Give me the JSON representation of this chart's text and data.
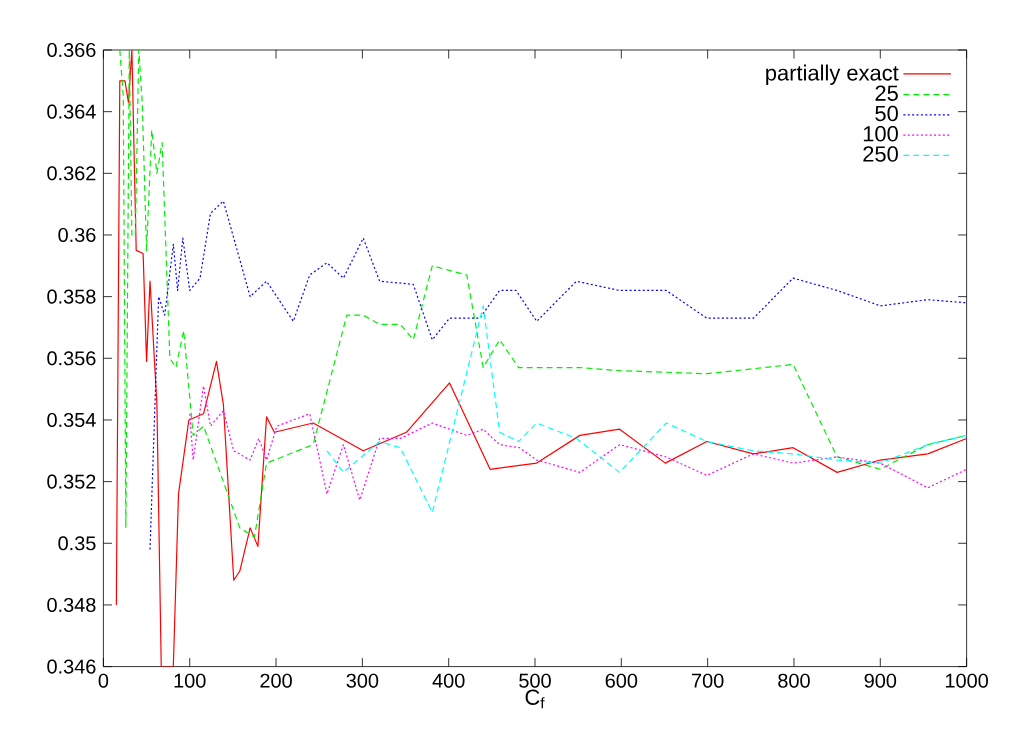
{
  "chart_data": {
    "type": "line",
    "xlabel": "C$_{f}$",
    "xlim": [
      0,
      1000
    ],
    "ylim": [
      0.346,
      0.366
    ],
    "xticks": [
      0,
      100,
      200,
      300,
      400,
      500,
      600,
      700,
      800,
      900,
      1000
    ],
    "yticks": [
      0.346,
      0.348,
      0.35,
      0.352,
      0.354,
      0.356,
      0.358,
      0.36,
      0.362,
      0.364,
      0.366
    ],
    "legend": "top right",
    "grid": false,
    "marker": "none",
    "series": [
      {
        "name": "partially exact",
        "color": "#ff0000",
        "line_style": "solid",
        "x": [
          15,
          19,
          25,
          29,
          33,
          38,
          46,
          50,
          54,
          62,
          67,
          81,
          87,
          99,
          116,
          131,
          139,
          151,
          158,
          170,
          179,
          189,
          198,
          243,
          301,
          351,
          401,
          448,
          502,
          552,
          598,
          651,
          699,
          753,
          799,
          850,
          900,
          955,
          1000
        ],
        "values": [
          0.348,
          0.365,
          0.365,
          0.3643,
          0.366,
          0.3595,
          0.3594,
          0.3559,
          0.3585,
          0.3545,
          0.346,
          0.346,
          0.3516,
          0.354,
          0.3542,
          0.3559,
          0.3545,
          0.3488,
          0.3491,
          0.3505,
          0.3499,
          0.3541,
          0.3536,
          0.3539,
          0.353,
          0.3536,
          0.3552,
          0.3524,
          0.3526,
          0.3535,
          0.3537,
          0.3526,
          0.3533,
          0.3529,
          0.3531,
          0.3523,
          0.3527,
          0.3529,
          0.3534
        ]
      },
      {
        "name": "25",
        "color": "#00ee00",
        "line_style": "dashed",
        "x": [
          19,
          23,
          26,
          30,
          33,
          37,
          41,
          45,
          50,
          56,
          62,
          68,
          77,
          84,
          93,
          104,
          116,
          158,
          175,
          189,
          243,
          282,
          301,
          320,
          344,
          359,
          381,
          421,
          440,
          459,
          481,
          552,
          598,
          699,
          799,
          850,
          900,
          955,
          1000
        ],
        "values": [
          0.366,
          0.3645,
          0.3505,
          0.366,
          0.36,
          0.36,
          0.366,
          0.3643,
          0.3595,
          0.3634,
          0.362,
          0.363,
          0.356,
          0.3557,
          0.3569,
          0.3535,
          0.3538,
          0.3505,
          0.3502,
          0.3526,
          0.3532,
          0.3574,
          0.3574,
          0.3571,
          0.3571,
          0.3566,
          0.359,
          0.3587,
          0.3557,
          0.3566,
          0.3557,
          0.3557,
          0.3556,
          0.3555,
          0.3558,
          0.3528,
          0.3524,
          0.3532,
          0.3535
        ]
      },
      {
        "name": "50",
        "color": "#0000ff",
        "line_style": "dotted",
        "x": [
          54,
          64,
          71,
          81,
          86,
          92,
          100,
          112,
          124,
          139,
          170,
          189,
          220,
          239,
          259,
          278,
          301,
          320,
          359,
          381,
          401,
          436,
          459,
          478,
          502,
          548,
          598,
          652,
          699,
          753,
          799,
          850,
          900,
          955,
          1000
        ],
        "values": [
          0.3498,
          0.358,
          0.3574,
          0.3597,
          0.3582,
          0.3599,
          0.3582,
          0.3586,
          0.3607,
          0.3611,
          0.358,
          0.3585,
          0.3572,
          0.3587,
          0.3591,
          0.3586,
          0.3599,
          0.3585,
          0.3584,
          0.3566,
          0.3573,
          0.3573,
          0.3582,
          0.3582,
          0.3572,
          0.3585,
          0.3582,
          0.3582,
          0.3573,
          0.3573,
          0.3586,
          0.3582,
          0.3577,
          0.3579,
          0.3578
        ]
      },
      {
        "name": "100",
        "color": "#ff00ff",
        "line_style": "dotted",
        "x": [
          100,
          104,
          112,
          116,
          124,
          139,
          151,
          170,
          180,
          189,
          201,
          239,
          259,
          278,
          297,
          320,
          344,
          381,
          421,
          440,
          459,
          482,
          502,
          552,
          598,
          652,
          699,
          753,
          799,
          850,
          900,
          955,
          1000
        ],
        "values": [
          0.3542,
          0.3527,
          0.3543,
          0.3551,
          0.3538,
          0.3543,
          0.353,
          0.3527,
          0.3534,
          0.3527,
          0.3538,
          0.3542,
          0.3516,
          0.3532,
          0.3514,
          0.3534,
          0.3534,
          0.3539,
          0.3535,
          0.3537,
          0.3532,
          0.3531,
          0.3527,
          0.3523,
          0.3532,
          0.3528,
          0.3522,
          0.3529,
          0.3526,
          0.3528,
          0.3526,
          0.3518,
          0.3524
        ]
      },
      {
        "name": "250",
        "color": "#00ffff",
        "line_style": "dashed",
        "x": [
          259,
          278,
          320,
          344,
          381,
          440,
          459,
          481,
          502,
          548,
          598,
          652,
          699,
          753,
          799,
          850,
          900,
          955,
          1000
        ],
        "values": [
          0.353,
          0.3523,
          0.3533,
          0.3531,
          0.351,
          0.3577,
          0.3536,
          0.3533,
          0.3539,
          0.3534,
          0.3523,
          0.3539,
          0.3533,
          0.353,
          0.3529,
          0.3527,
          0.3526,
          0.3532,
          0.3535
        ]
      }
    ]
  }
}
